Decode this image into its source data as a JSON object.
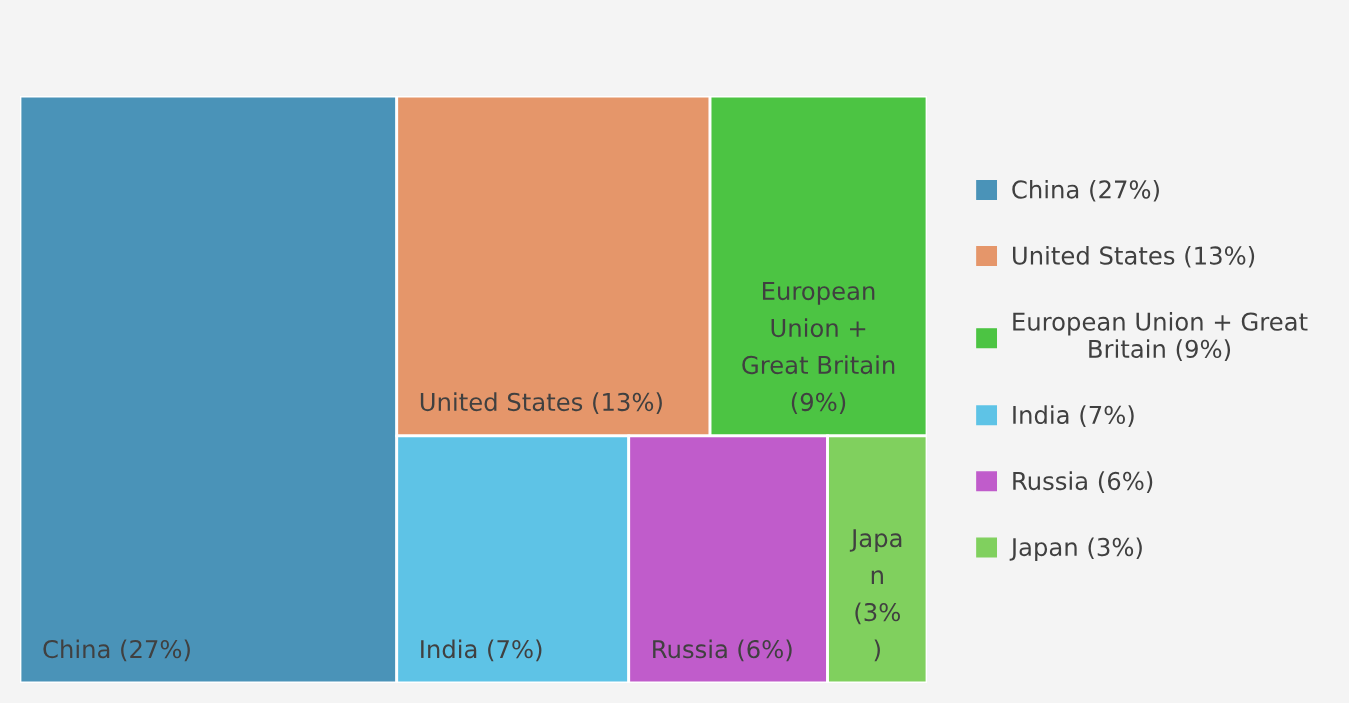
{
  "chart_data": {
    "type": "other",
    "series": [
      {
        "name": "China",
        "color": "#4a93b8",
        "values": [
          27
        ],
        "value_labels": [
          "(27%)"
        ]
      },
      {
        "name": "United States",
        "color": "#e5966a",
        "values": [
          13
        ],
        "value_labels": [
          "(13%)"
        ]
      },
      {
        "name": "European Union + Great Britain",
        "color": "#4cc443",
        "values": [
          9
        ],
        "value_labels": [
          "(9%)"
        ]
      },
      {
        "name": "India",
        "color": "#5ec3e6",
        "values": [
          7
        ],
        "value_labels": [
          "(7%)"
        ]
      },
      {
        "name": "Russia",
        "color": "#c05ccb",
        "values": [
          6
        ],
        "value_labels": [
          "(6%)"
        ]
      },
      {
        "name": "Japan",
        "color": "#80d05e",
        "values": [
          3
        ],
        "value_labels": [
          "(3%)"
        ]
      }
    ],
    "legend": "right"
  }
}
